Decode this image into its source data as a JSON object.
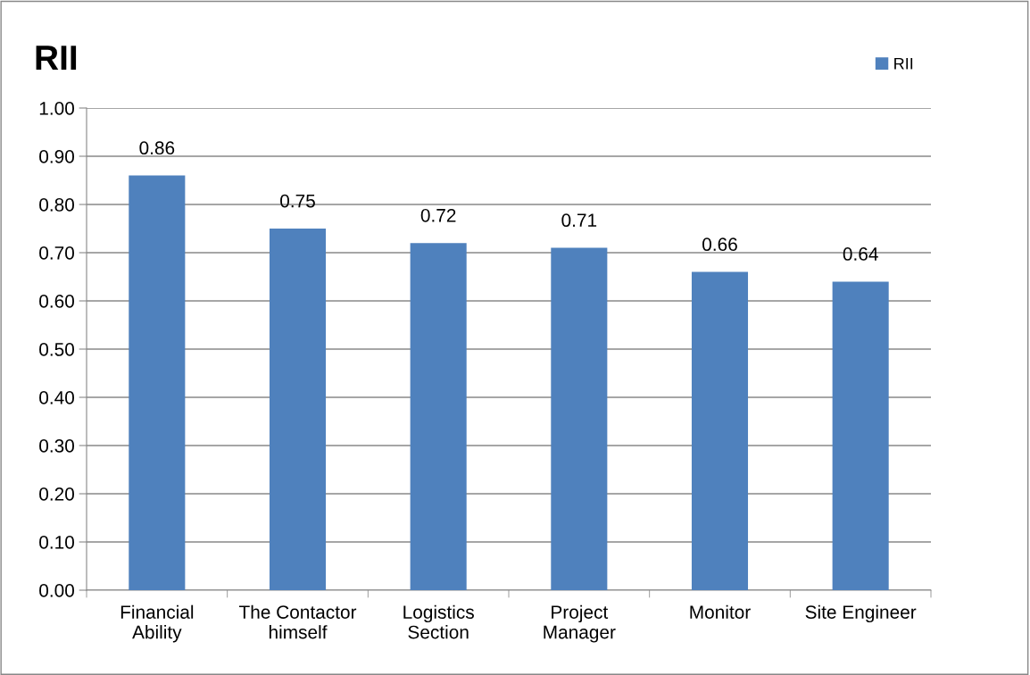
{
  "chart_data": {
    "type": "bar",
    "title": "RII",
    "categories": [
      "Financial\nAbility",
      "The Contactor\nhimself",
      "Logistics\nSection",
      "Project\nManager",
      "Monitor",
      "Site Engineer"
    ],
    "series": [
      {
        "name": "RII",
        "color": "#4f81bd",
        "values": [
          0.86,
          0.75,
          0.72,
          0.71,
          0.66,
          0.64
        ]
      }
    ],
    "ylim": [
      0,
      1
    ],
    "yticks": [
      {
        "value": 0,
        "label": "0.00"
      },
      {
        "value": 0.1,
        "label": "0.10"
      },
      {
        "value": 0.2,
        "label": "0.20"
      },
      {
        "value": 0.3,
        "label": "0.30"
      },
      {
        "value": 0.4,
        "label": "0.40"
      },
      {
        "value": 0.5,
        "label": "0.50"
      },
      {
        "value": 0.6,
        "label": "0.60"
      },
      {
        "value": 0.7,
        "label": "0.70"
      },
      {
        "value": 0.8,
        "label": "0.80"
      },
      {
        "value": 0.9,
        "label": "0.90"
      },
      {
        "value": 1,
        "label": "1.00"
      }
    ],
    "grid": "y",
    "legend": "top right",
    "data_labels": true
  }
}
